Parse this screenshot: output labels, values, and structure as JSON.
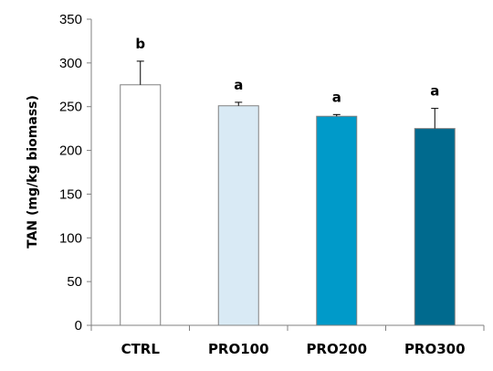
{
  "chart_data": {
    "type": "bar",
    "xlabel": "",
    "ylabel": "TAN (mg/kg biomass)",
    "ylim": [
      0,
      350
    ],
    "yticks": [
      0,
      50,
      100,
      150,
      200,
      250,
      300,
      350
    ],
    "grid": false,
    "categories": [
      "CTRL",
      "PRO100",
      "PRO200",
      "PRO300"
    ],
    "values": [
      275,
      251,
      239,
      225
    ],
    "error_plus": [
      27,
      4,
      2,
      23
    ],
    "significance": [
      "b",
      "a",
      "a",
      "a"
    ],
    "bar_colors": [
      "#ffffff",
      "#d9eaf5",
      "#009ac9",
      "#006a8e"
    ],
    "edge_color": "#808080"
  }
}
